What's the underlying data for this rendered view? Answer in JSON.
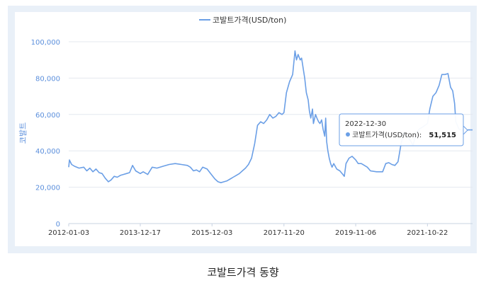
{
  "caption": "코발트가격 동향",
  "chart_data": {
    "type": "line",
    "title": "",
    "ylabel": "코발트",
    "xlabel": "",
    "ylim": [
      0,
      100000
    ],
    "yticks": [
      "0",
      "20,000",
      "40,000",
      "60,000",
      "80,000",
      "100,000"
    ],
    "ytick_values": [
      0,
      20000,
      40000,
      60000,
      80000,
      100000
    ],
    "xticks": [
      "2012-01-03",
      "2013-12-17",
      "2015-12-03",
      "2017-11-20",
      "2019-11-06",
      "2021-10-22"
    ],
    "legend_position": "top",
    "grid": true,
    "series": [
      {
        "name": "코발트가격(USD/ton)",
        "color": "#6b9fe6",
        "points": [
          [
            "2012-01-03",
            31000
          ],
          [
            "2012-01-10",
            35000
          ],
          [
            "2012-02-01",
            32500
          ],
          [
            "2012-03-01",
            31500
          ],
          [
            "2012-04-15",
            30500
          ],
          [
            "2012-06-01",
            31000
          ],
          [
            "2012-07-01",
            29000
          ],
          [
            "2012-08-01",
            30500
          ],
          [
            "2012-09-01",
            28500
          ],
          [
            "2012-10-01",
            30000
          ],
          [
            "2012-11-01",
            28000
          ],
          [
            "2012-12-01",
            27500
          ],
          [
            "2013-01-01",
            25000
          ],
          [
            "2013-02-01",
            23000
          ],
          [
            "2013-03-01",
            24000
          ],
          [
            "2013-04-01",
            26000
          ],
          [
            "2013-05-01",
            25500
          ],
          [
            "2013-06-01",
            26500
          ],
          [
            "2013-07-01",
            27000
          ],
          [
            "2013-08-01",
            27500
          ],
          [
            "2013-09-01",
            28000
          ],
          [
            "2013-10-01",
            32000
          ],
          [
            "2013-11-01",
            29000
          ],
          [
            "2013-12-17",
            27500
          ],
          [
            "2014-01-15",
            28500
          ],
          [
            "2014-03-01",
            27000
          ],
          [
            "2014-04-15",
            31000
          ],
          [
            "2014-06-01",
            30500
          ],
          [
            "2014-08-01",
            31500
          ],
          [
            "2014-10-01",
            32500
          ],
          [
            "2014-12-01",
            33000
          ],
          [
            "2015-02-01",
            32500
          ],
          [
            "2015-04-01",
            32000
          ],
          [
            "2015-05-01",
            31000
          ],
          [
            "2015-06-01",
            29000
          ],
          [
            "2015-07-01",
            29500
          ],
          [
            "2015-08-01",
            28500
          ],
          [
            "2015-09-01",
            31000
          ],
          [
            "2015-10-15",
            30000
          ],
          [
            "2015-12-03",
            26500
          ],
          [
            "2016-01-01",
            24500
          ],
          [
            "2016-02-01",
            23000
          ],
          [
            "2016-03-01",
            22500
          ],
          [
            "2016-04-01",
            23000
          ],
          [
            "2016-05-01",
            23500
          ],
          [
            "2016-06-01",
            24500
          ],
          [
            "2016-07-01",
            25500
          ],
          [
            "2016-08-01",
            26500
          ],
          [
            "2016-09-01",
            27500
          ],
          [
            "2016-10-01",
            29000
          ],
          [
            "2016-11-01",
            30500
          ],
          [
            "2016-12-01",
            32500
          ],
          [
            "2017-01-01",
            36000
          ],
          [
            "2017-02-01",
            44000
          ],
          [
            "2017-03-01",
            54000
          ],
          [
            "2017-04-01",
            56000
          ],
          [
            "2017-05-01",
            55000
          ],
          [
            "2017-06-01",
            57000
          ],
          [
            "2017-07-01",
            60000
          ],
          [
            "2017-08-01",
            58000
          ],
          [
            "2017-09-01",
            59000
          ],
          [
            "2017-10-01",
            61000
          ],
          [
            "2017-11-01",
            60000
          ],
          [
            "2017-11-20",
            61000
          ],
          [
            "2017-12-15",
            72000
          ],
          [
            "2018-01-15",
            78000
          ],
          [
            "2018-02-15",
            82000
          ],
          [
            "2018-03-10",
            95000
          ],
          [
            "2018-03-25",
            90000
          ],
          [
            "2018-04-10",
            93000
          ],
          [
            "2018-05-01",
            90000
          ],
          [
            "2018-05-15",
            91000
          ],
          [
            "2018-06-01",
            85000
          ],
          [
            "2018-06-15",
            80000
          ],
          [
            "2018-07-01",
            72000
          ],
          [
            "2018-07-20",
            68000
          ],
          [
            "2018-08-01",
            62000
          ],
          [
            "2018-08-15",
            58000
          ],
          [
            "2018-09-01",
            63000
          ],
          [
            "2018-09-10",
            55000
          ],
          [
            "2018-10-01",
            60000
          ],
          [
            "2018-10-15",
            58000
          ],
          [
            "2018-11-01",
            56000
          ],
          [
            "2018-11-15",
            55000
          ],
          [
            "2018-12-01",
            57000
          ],
          [
            "2018-12-15",
            52000
          ],
          [
            "2019-01-01",
            48000
          ],
          [
            "2019-01-10",
            58000
          ],
          [
            "2019-01-20",
            45000
          ],
          [
            "2019-02-01",
            40000
          ],
          [
            "2019-02-15",
            36000
          ],
          [
            "2019-03-01",
            33000
          ],
          [
            "2019-03-15",
            31000
          ],
          [
            "2019-04-01",
            33000
          ],
          [
            "2019-05-01",
            30000
          ],
          [
            "2019-06-01",
            29000
          ],
          [
            "2019-07-01",
            27000
          ],
          [
            "2019-07-15",
            26000
          ],
          [
            "2019-08-01",
            33000
          ],
          [
            "2019-09-01",
            36000
          ],
          [
            "2019-10-01",
            37000
          ],
          [
            "2019-11-06",
            35000
          ],
          [
            "2019-12-01",
            33000
          ],
          [
            "2020-01-01",
            33000
          ],
          [
            "2020-02-01",
            32000
          ],
          [
            "2020-03-01",
            31000
          ],
          [
            "2020-04-01",
            29000
          ],
          [
            "2020-06-01",
            28500
          ],
          [
            "2020-08-01",
            28500
          ],
          [
            "2020-09-01",
            33000
          ],
          [
            "2020-10-01",
            33500
          ],
          [
            "2020-11-01",
            32500
          ],
          [
            "2020-12-01",
            32000
          ],
          [
            "2021-01-01",
            34000
          ],
          [
            "2021-02-01",
            44000
          ],
          [
            "2021-03-01",
            50000
          ],
          [
            "2021-04-01",
            48000
          ],
          [
            "2021-05-01",
            46000
          ],
          [
            "2021-06-01",
            43000
          ],
          [
            "2021-07-01",
            50000
          ],
          [
            "2021-08-01",
            52000
          ],
          [
            "2021-09-01",
            53000
          ],
          [
            "2021-10-22",
            55000
          ],
          [
            "2021-11-15",
            63000
          ],
          [
            "2021-12-15",
            70000
          ],
          [
            "2022-01-15",
            72000
          ],
          [
            "2022-02-15",
            76000
          ],
          [
            "2022-03-15",
            82000
          ],
          [
            "2022-04-15",
            82000
          ],
          [
            "2022-05-15",
            82500
          ],
          [
            "2022-06-10",
            75000
          ],
          [
            "2022-07-01",
            73000
          ],
          [
            "2022-07-20",
            66000
          ],
          [
            "2022-08-01",
            56000
          ],
          [
            "2022-09-01",
            52000
          ],
          [
            "2022-10-01",
            51500
          ],
          [
            "2022-11-01",
            51000
          ],
          [
            "2022-12-01",
            51500
          ],
          [
            "2022-12-30",
            51515
          ]
        ]
      }
    ],
    "tooltip": {
      "date": "2022-12-30",
      "series_label": "코발트가격(USD/ton):",
      "value_text": "51,515",
      "value": 51515
    }
  }
}
